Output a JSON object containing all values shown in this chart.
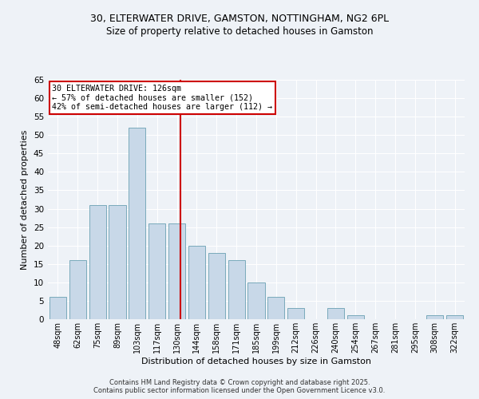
{
  "title_line1": "30, ELTERWATER DRIVE, GAMSTON, NOTTINGHAM, NG2 6PL",
  "title_line2": "Size of property relative to detached houses in Gamston",
  "xlabel": "Distribution of detached houses by size in Gamston",
  "ylabel": "Number of detached properties",
  "bar_labels": [
    "48sqm",
    "62sqm",
    "75sqm",
    "89sqm",
    "103sqm",
    "117sqm",
    "130sqm",
    "144sqm",
    "158sqm",
    "171sqm",
    "185sqm",
    "199sqm",
    "212sqm",
    "226sqm",
    "240sqm",
    "254sqm",
    "267sqm",
    "281sqm",
    "295sqm",
    "308sqm",
    "322sqm"
  ],
  "bar_values": [
    6,
    16,
    31,
    31,
    52,
    26,
    26,
    20,
    18,
    16,
    10,
    6,
    3,
    0,
    3,
    1,
    0,
    0,
    0,
    1,
    1
  ],
  "bar_color": "#c8d8e8",
  "bar_edge_color": "#7aaabb",
  "vline_color": "#cc0000",
  "annotation_text": "30 ELTERWATER DRIVE: 126sqm\n← 57% of detached houses are smaller (152)\n42% of semi-detached houses are larger (112) →",
  "annotation_box_facecolor": "#ffffff",
  "annotation_box_edgecolor": "#cc0000",
  "ylim": [
    0,
    65
  ],
  "yticks": [
    0,
    5,
    10,
    15,
    20,
    25,
    30,
    35,
    40,
    45,
    50,
    55,
    60,
    65
  ],
  "background_color": "#eef2f7",
  "grid_color": "#ffffff",
  "footer_line1": "Contains HM Land Registry data © Crown copyright and database right 2025.",
  "footer_line2": "Contains public sector information licensed under the Open Government Licence v3.0."
}
